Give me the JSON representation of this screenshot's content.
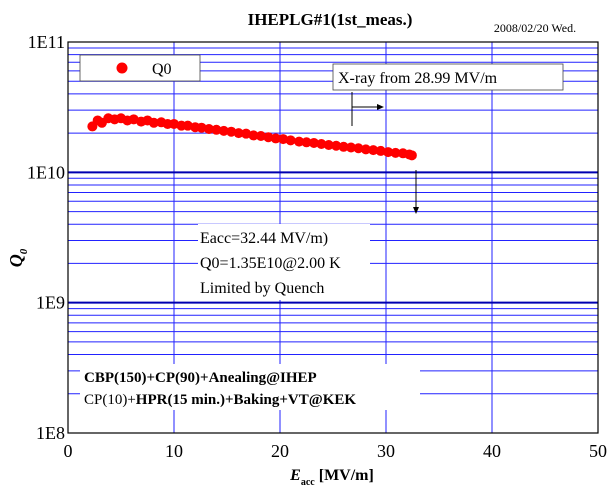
{
  "header": {
    "title": "IHEPLG#1(1st_meas.)",
    "date": "2008/02/20 Wed."
  },
  "chart_data": {
    "type": "scatter",
    "xlabel_main": "E",
    "xlabel_sub": "acc",
    "xlabel_unit": " [MV/m]",
    "ylabel_main": "Q",
    "ylabel_sub": "0",
    "xlim": [
      0,
      50
    ],
    "ylim": [
      100000000.0,
      100000000000.0
    ],
    "yscale": "log",
    "grid": true,
    "x_ticks": [
      "0",
      "10",
      "20",
      "30",
      "40",
      "50"
    ],
    "y_ticks": [
      "1E8",
      "1E9",
      "1E10",
      "1E11"
    ],
    "legend": {
      "placement": "top-left",
      "label": "Q0"
    },
    "series": [
      {
        "name": "Q0",
        "color": "#ff0000",
        "x": [
          2.3,
          2.8,
          3.2,
          3.8,
          4.4,
          5.0,
          5.6,
          6.2,
          6.9,
          7.5,
          8.1,
          8.8,
          9.4,
          10.0,
          10.7,
          11.3,
          12.0,
          12.6,
          13.3,
          14.0,
          14.7,
          15.4,
          16.1,
          16.8,
          17.5,
          18.2,
          18.9,
          19.6,
          20.3,
          21.0,
          21.8,
          22.5,
          23.2,
          23.9,
          24.6,
          25.3,
          26.0,
          26.7,
          27.4,
          28.1,
          28.8,
          29.5,
          30.2,
          30.9,
          31.6,
          32.2,
          32.44
        ],
        "y": [
          22500000000.0,
          25000000000.0,
          24000000000.0,
          26000000000.0,
          25500000000.0,
          26000000000.0,
          25000000000.0,
          25500000000.0,
          24500000000.0,
          25000000000.0,
          24000000000.0,
          24200000000.0,
          23500000000.0,
          23500000000.0,
          22800000000.0,
          22800000000.0,
          22200000000.0,
          22000000000.0,
          21500000000.0,
          21200000000.0,
          20800000000.0,
          20500000000.0,
          20000000000.0,
          19800000000.0,
          19200000000.0,
          19000000000.0,
          18600000000.0,
          18200000000.0,
          18000000000.0,
          17600000000.0,
          17200000000.0,
          17000000000.0,
          16800000000.0,
          16500000000.0,
          16200000000.0,
          16000000000.0,
          15700000000.0,
          15500000000.0,
          15300000000.0,
          15000000000.0,
          14800000000.0,
          14600000000.0,
          14300000000.0,
          14100000000.0,
          14000000000.0,
          13700000000.0,
          13500000000.0
        ]
      }
    ],
    "annotations": {
      "xray": "X-ray from 28.99 MV/m",
      "result_lines": [
        "Eacc=32.44 MV/m)",
        "Q0=1.35E10@2.00 K",
        "Limited by Quench"
      ],
      "process_line1": "CBP(150)+CP(90)+Anealing@IHEP",
      "process_line2_normal": "CP(10)+",
      "process_line2_bold": "HPR(15 min.)+Baking+VT@KEK"
    }
  }
}
